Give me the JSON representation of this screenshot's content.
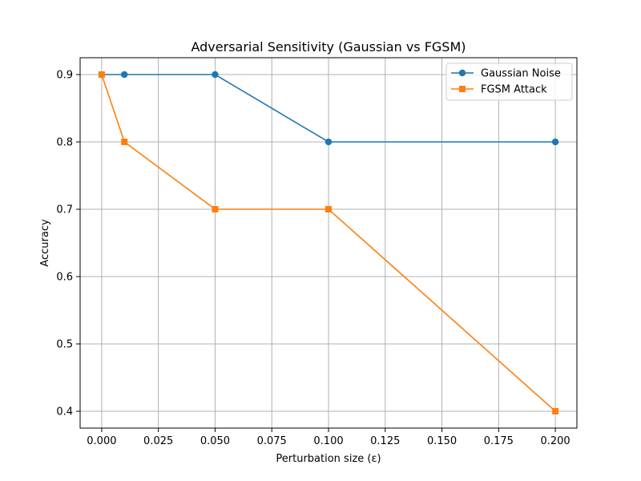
{
  "chart_data": {
    "type": "line",
    "title": "Adversarial Sensitivity (Gaussian vs FGSM)",
    "xlabel": "Perturbation size (ε)",
    "ylabel": "Accuracy",
    "xlim": [
      -0.0095,
      0.2095
    ],
    "ylim": [
      0.375,
      0.925
    ],
    "xticks": [
      0.0,
      0.025,
      0.05,
      0.075,
      0.1,
      0.125,
      0.15,
      0.175,
      0.2
    ],
    "xtick_labels": [
      "0.000",
      "0.025",
      "0.050",
      "0.075",
      "0.100",
      "0.125",
      "0.150",
      "0.175",
      "0.200"
    ],
    "yticks": [
      0.4,
      0.5,
      0.6,
      0.7,
      0.8,
      0.9
    ],
    "ytick_labels": [
      "0.4",
      "0.5",
      "0.6",
      "0.7",
      "0.8",
      "0.9"
    ],
    "grid": true,
    "legend_position": "top-right",
    "series": [
      {
        "name": "Gaussian Noise",
        "color": "#1f77b4",
        "marker": "circle",
        "x": [
          0.0,
          0.01,
          0.05,
          0.1,
          0.2
        ],
        "y": [
          0.9,
          0.9,
          0.9,
          0.8,
          0.8
        ]
      },
      {
        "name": "FGSM Attack",
        "color": "#ff7f0e",
        "marker": "square",
        "x": [
          0.0,
          0.01,
          0.05,
          0.1,
          0.2
        ],
        "y": [
          0.9,
          0.8,
          0.7,
          0.7,
          0.4
        ]
      }
    ]
  }
}
